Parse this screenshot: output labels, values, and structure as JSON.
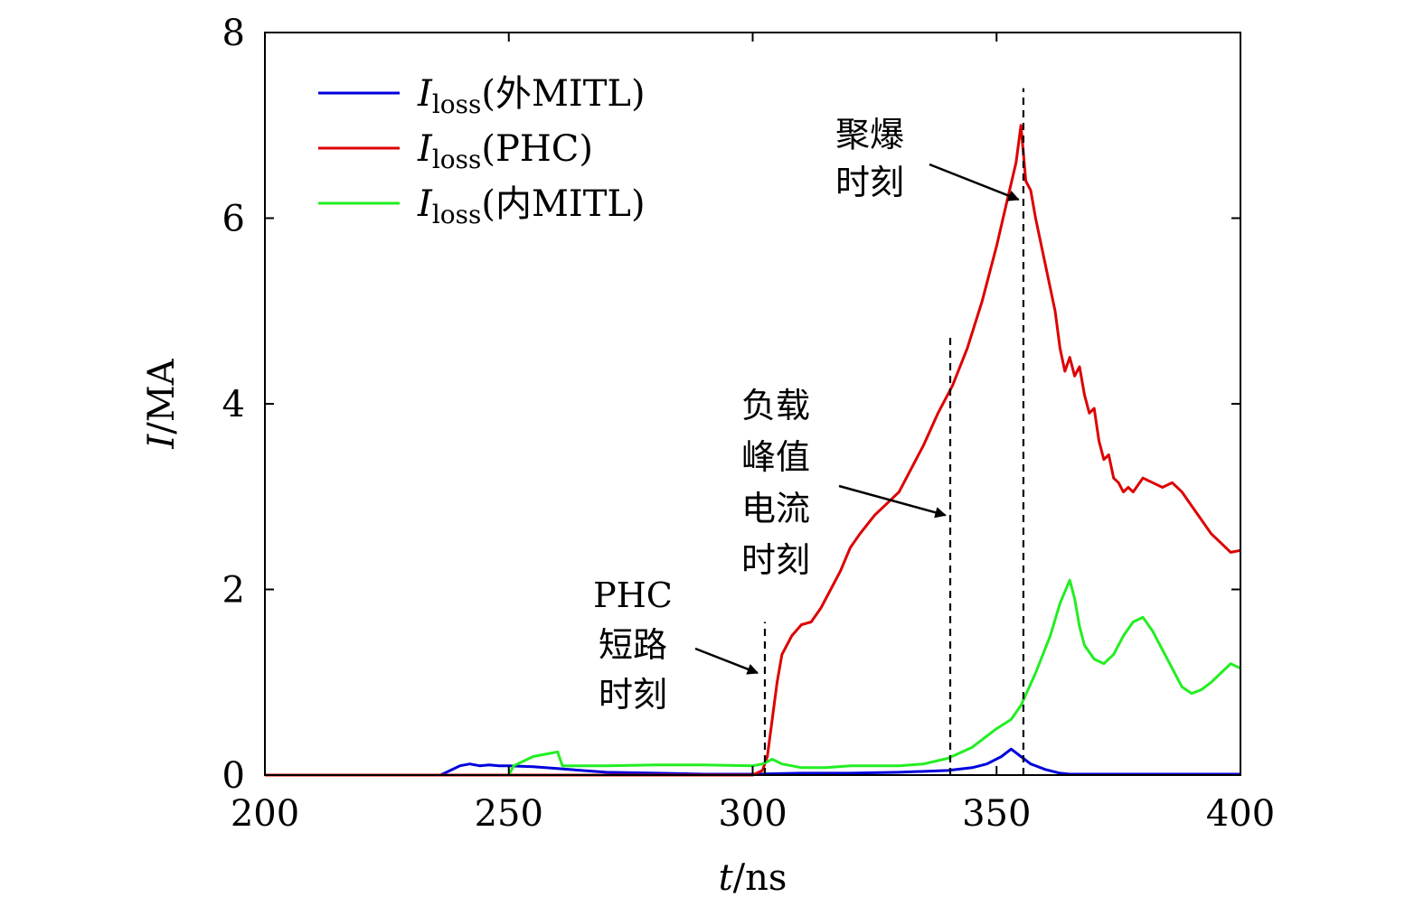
{
  "chart_data": {
    "type": "line",
    "title": "",
    "xlabel": "t/ns",
    "ylabel": "I/MA",
    "xlim": [
      200,
      400
    ],
    "ylim": [
      0,
      8
    ],
    "xticks": [
      200,
      250,
      300,
      350,
      400
    ],
    "yticks": [
      0,
      2,
      4,
      6,
      8
    ],
    "grid": false,
    "legend_position": "top-left",
    "series": [
      {
        "name": "I_loss(外MITL)",
        "legend_main": "I",
        "legend_sub": "loss",
        "legend_suffix": "(外MITL)",
        "color": "#0000dd",
        "points": [
          [
            200,
            0
          ],
          [
            236,
            0
          ],
          [
            238,
            0.05
          ],
          [
            240,
            0.1
          ],
          [
            242,
            0.12
          ],
          [
            244,
            0.1
          ],
          [
            246,
            0.11
          ],
          [
            248,
            0.1
          ],
          [
            250,
            0.1
          ],
          [
            255,
            0.09
          ],
          [
            260,
            0.07
          ],
          [
            265,
            0.05
          ],
          [
            270,
            0.03
          ],
          [
            280,
            0.02
          ],
          [
            290,
            0.01
          ],
          [
            300,
            0.01
          ],
          [
            310,
            0.02
          ],
          [
            320,
            0.02
          ],
          [
            330,
            0.03
          ],
          [
            340,
            0.05
          ],
          [
            345,
            0.08
          ],
          [
            348,
            0.12
          ],
          [
            351,
            0.2
          ],
          [
            353,
            0.28
          ],
          [
            355,
            0.2
          ],
          [
            357,
            0.12
          ],
          [
            360,
            0.06
          ],
          [
            363,
            0.02
          ],
          [
            365,
            0.01
          ],
          [
            400,
            0.01
          ]
        ]
      },
      {
        "name": "I_loss(PHC)",
        "legend_main": "I",
        "legend_sub": "loss",
        "legend_suffix": "(PHC)",
        "color": "#dd0000",
        "points": [
          [
            200,
            0
          ],
          [
            300,
            0
          ],
          [
            302,
            0.05
          ],
          [
            303,
            0.2
          ],
          [
            304,
            0.6
          ],
          [
            305,
            1.0
          ],
          [
            306,
            1.3
          ],
          [
            308,
            1.5
          ],
          [
            310,
            1.62
          ],
          [
            312,
            1.65
          ],
          [
            314,
            1.8
          ],
          [
            316,
            2.0
          ],
          [
            318,
            2.2
          ],
          [
            320,
            2.45
          ],
          [
            322,
            2.6
          ],
          [
            325,
            2.8
          ],
          [
            328,
            2.95
          ],
          [
            330,
            3.05
          ],
          [
            332,
            3.25
          ],
          [
            335,
            3.55
          ],
          [
            338,
            3.9
          ],
          [
            341,
            4.2
          ],
          [
            344,
            4.6
          ],
          [
            347,
            5.1
          ],
          [
            350,
            5.7
          ],
          [
            352,
            6.15
          ],
          [
            354,
            6.6
          ],
          [
            355,
            7.0
          ],
          [
            356,
            6.4
          ],
          [
            357,
            6.3
          ],
          [
            358,
            6.0
          ],
          [
            360,
            5.5
          ],
          [
            362,
            5.0
          ],
          [
            363,
            4.6
          ],
          [
            364,
            4.35
          ],
          [
            365,
            4.5
          ],
          [
            366,
            4.3
          ],
          [
            367,
            4.4
          ],
          [
            368,
            4.1
          ],
          [
            369,
            3.9
          ],
          [
            370,
            3.95
          ],
          [
            371,
            3.6
          ],
          [
            372,
            3.4
          ],
          [
            373,
            3.45
          ],
          [
            374,
            3.2
          ],
          [
            375,
            3.15
          ],
          [
            376,
            3.05
          ],
          [
            377,
            3.1
          ],
          [
            378,
            3.05
          ],
          [
            380,
            3.2
          ],
          [
            382,
            3.15
          ],
          [
            384,
            3.1
          ],
          [
            386,
            3.15
          ],
          [
            388,
            3.05
          ],
          [
            390,
            2.9
          ],
          [
            392,
            2.75
          ],
          [
            394,
            2.6
          ],
          [
            396,
            2.5
          ],
          [
            398,
            2.4
          ],
          [
            400,
            2.42
          ]
        ]
      },
      {
        "name": "I_loss(内MITL)",
        "legend_main": "I",
        "legend_sub": "loss",
        "legend_suffix": "(内MITL)",
        "color": "#22ee22",
        "points": [
          [
            250,
            0
          ],
          [
            251,
            0.1
          ],
          [
            253,
            0.15
          ],
          [
            255,
            0.2
          ],
          [
            258,
            0.23
          ],
          [
            260,
            0.25
          ],
          [
            261,
            0.1
          ],
          [
            270,
            0.1
          ],
          [
            280,
            0.11
          ],
          [
            290,
            0.11
          ],
          [
            300,
            0.1
          ],
          [
            302,
            0.12
          ],
          [
            304,
            0.17
          ],
          [
            306,
            0.12
          ],
          [
            310,
            0.08
          ],
          [
            315,
            0.08
          ],
          [
            320,
            0.1
          ],
          [
            330,
            0.1
          ],
          [
            335,
            0.12
          ],
          [
            340,
            0.18
          ],
          [
            345,
            0.3
          ],
          [
            350,
            0.5
          ],
          [
            353,
            0.6
          ],
          [
            355,
            0.75
          ],
          [
            358,
            1.1
          ],
          [
            361,
            1.5
          ],
          [
            363,
            1.85
          ],
          [
            365,
            2.1
          ],
          [
            366,
            1.9
          ],
          [
            367,
            1.6
          ],
          [
            368,
            1.4
          ],
          [
            370,
            1.25
          ],
          [
            372,
            1.2
          ],
          [
            374,
            1.3
          ],
          [
            376,
            1.5
          ],
          [
            378,
            1.65
          ],
          [
            380,
            1.7
          ],
          [
            382,
            1.55
          ],
          [
            384,
            1.35
          ],
          [
            386,
            1.15
          ],
          [
            388,
            0.95
          ],
          [
            390,
            0.88
          ],
          [
            392,
            0.92
          ],
          [
            394,
            1.0
          ],
          [
            396,
            1.1
          ],
          [
            398,
            1.2
          ],
          [
            400,
            1.15
          ]
        ]
      }
    ],
    "vlines": [
      {
        "x": 302.5,
        "ymin": 0,
        "ymax": 1.65
      },
      {
        "x": 340.5,
        "ymin": 0,
        "ymax": 4.75
      },
      {
        "x": 355.5,
        "ymin": 0,
        "ymax": 7.4
      }
    ],
    "annotations": [
      {
        "lines": [
          "PHC",
          "短路",
          "时刻"
        ],
        "target_x": 301,
        "target_y": 1.1
      },
      {
        "lines": [
          "负载",
          "峰值",
          "电流",
          "时刻"
        ],
        "target_x": 339.5,
        "target_y": 2.8
      },
      {
        "lines": [
          "聚爆",
          "时刻"
        ],
        "target_x": 354.5,
        "target_y": 6.2
      }
    ]
  }
}
